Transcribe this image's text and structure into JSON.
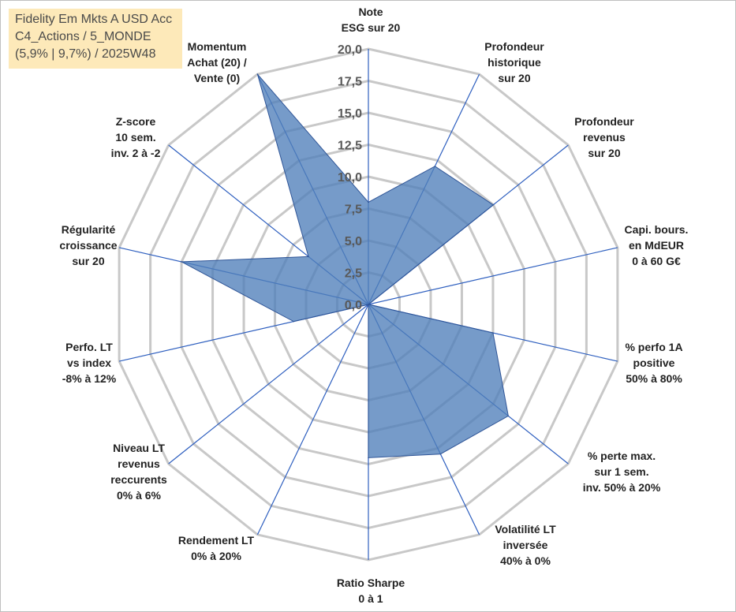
{
  "title": {
    "line1": "Fidelity Em Mkts A USD Acc",
    "line2": "C4_Actions / 5_MONDE",
    "line3": "(5,9% | 9,7%) / 2025W48"
  },
  "chart_data": {
    "type": "radar",
    "title": "Fidelity Em Mkts A USD Acc",
    "rlim": [
      0,
      20
    ],
    "ticks": [
      "0,0",
      "2,5",
      "5,0",
      "7,5",
      "10,0",
      "12,5",
      "15,0",
      "17,5",
      "20,0"
    ],
    "axes": [
      [
        "Note",
        "ESG sur 20"
      ],
      [
        "Profondeur",
        "historique",
        "sur 20"
      ],
      [
        "Profondeur",
        "revenus",
        "sur 20"
      ],
      [
        "Capi. bours.",
        "en MdEUR",
        "0 à 60 G€"
      ],
      [
        "% perfo 1A",
        "positive",
        "50% à 80%"
      ],
      [
        "% perte max.",
        "sur 1 sem.",
        "inv. 50% à 20%"
      ],
      [
        "Volatilité LT",
        "inversée",
        "40% à 0%"
      ],
      [
        "Ratio Sharpe",
        "0 à 1"
      ],
      [
        "Rendement LT",
        "0% à 20%"
      ],
      [
        "Niveau LT",
        "revenus",
        "reccurents",
        "0% à 6%"
      ],
      [
        "Perfo. LT",
        "vs index",
        "-8% à 12%"
      ],
      [
        "Régularité",
        "croissance",
        "sur 20"
      ],
      [
        "Z-score",
        "10 sem.",
        "inv. 2 à -2"
      ],
      [
        "Momentum",
        "Achat (20) /",
        "Vente (0)"
      ]
    ],
    "series": [
      {
        "name": "Fidelity Em Mkts A USD Acc",
        "values": [
          8,
          12,
          12.5,
          0,
          10,
          14,
          13,
          12,
          0,
          0,
          6,
          15,
          6,
          20
        ]
      }
    ],
    "colors": {
      "fill": "#4f7fba",
      "stroke": "#2f5597",
      "ring": "#c8c8c8",
      "spoke": "#2e5fbf"
    }
  }
}
